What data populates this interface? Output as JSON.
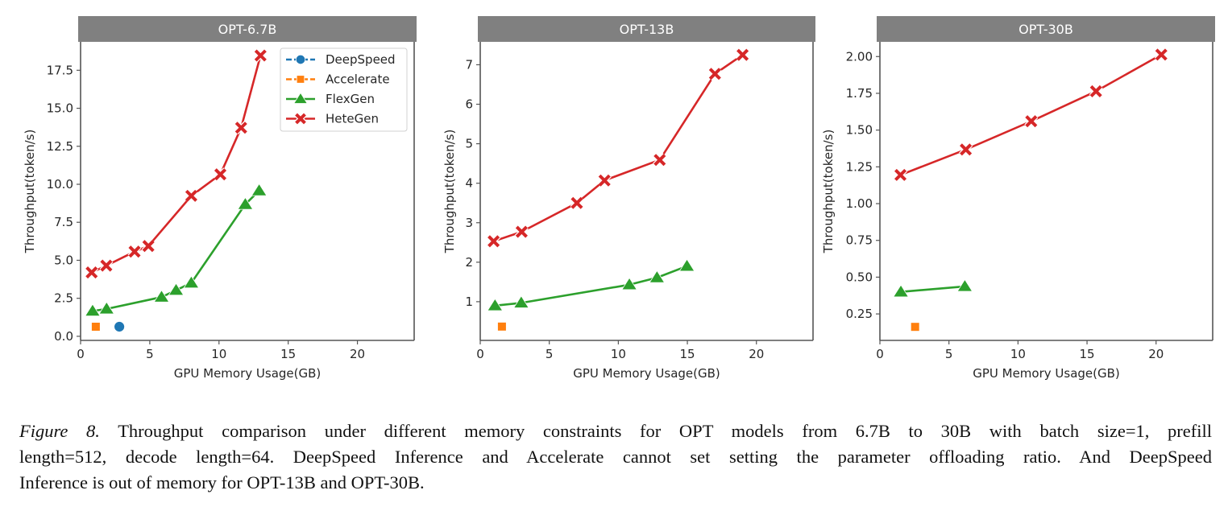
{
  "figure": {
    "label": "Figure 8.",
    "caption_lines": [
      "Throughput comparison under different memory constraints for OPT models from 6.7B to 30B with batch size=1, prefill",
      "length=512, decode length=64. DeepSpeed Inference and Accelerate cannot set setting the parameter offloading ratio. And DeepSpeed",
      "Inference is out of memory for OPT-13B and OPT-30B."
    ]
  },
  "legend": {
    "placement": "upper-right of first panel",
    "entries": [
      {
        "name": "DeepSpeed",
        "color": "#1f77b4",
        "marker": "circle"
      },
      {
        "name": "Accelerate",
        "color": "#ff7f0e",
        "marker": "square"
      },
      {
        "name": "FlexGen",
        "color": "#2ca02c",
        "marker": "triangle"
      },
      {
        "name": "HeteGen",
        "color": "#d62728",
        "marker": "x"
      }
    ]
  },
  "chart_data": [
    {
      "type": "line",
      "title": "OPT-6.7B",
      "xlabel": "GPU Memory Usage(GB)",
      "ylabel": "Throughput(token/s)",
      "xlim": [
        0,
        24.1
      ],
      "ylim": [
        -0.27,
        19.37
      ],
      "xticks": [
        0,
        5,
        10,
        15,
        20
      ],
      "xtick_labels": [
        "0",
        "5",
        "10",
        "15",
        "20"
      ],
      "yticks": [
        0,
        2.5,
        5,
        7.5,
        10,
        12.5,
        15,
        17.5
      ],
      "ytick_labels": [
        "0.0",
        "2.5",
        "5.0",
        "7.5",
        "10.0",
        "12.5",
        "15.0",
        "17.5"
      ],
      "grid": false,
      "legend": true,
      "series": [
        {
          "name": "DeepSpeed",
          "x": [
            2.8
          ],
          "y": [
            0.63
          ]
        },
        {
          "name": "Accelerate",
          "x": [
            1.1
          ],
          "y": [
            0.63
          ]
        },
        {
          "name": "FlexGen",
          "x": [
            0.87,
            1.88,
            5.85,
            6.9,
            8.0,
            11.9,
            12.9
          ],
          "y": [
            1.66,
            1.8,
            2.58,
            3.03,
            3.51,
            8.68,
            9.58
          ]
        },
        {
          "name": "HeteGen",
          "x": [
            0.8,
            1.86,
            3.9,
            4.9,
            8.0,
            10.1,
            11.6,
            13.0
          ],
          "y": [
            4.2,
            4.65,
            5.57,
            5.94,
            9.24,
            10.65,
            13.72,
            18.47
          ]
        }
      ]
    },
    {
      "type": "line",
      "title": "OPT-13B",
      "xlabel": "GPU Memory Usage(GB)",
      "ylabel": "Throughput(token/s)",
      "xlim": [
        0,
        24.1
      ],
      "ylim": [
        0.02,
        7.58
      ],
      "xticks": [
        0,
        5,
        10,
        15,
        20
      ],
      "xtick_labels": [
        "0",
        "5",
        "10",
        "15",
        "20"
      ],
      "yticks": [
        1,
        2,
        3,
        4,
        5,
        6,
        7
      ],
      "ytick_labels": [
        "1",
        "2",
        "3",
        "4",
        "5",
        "6",
        "7"
      ],
      "grid": false,
      "legend": false,
      "series": [
        {
          "name": "Accelerate",
          "x": [
            1.57
          ],
          "y": [
            0.37
          ]
        },
        {
          "name": "FlexGen",
          "x": [
            1.07,
            2.97,
            10.8,
            12.8,
            14.97
          ],
          "y": [
            0.9,
            0.97,
            1.43,
            1.61,
            1.9
          ]
        },
        {
          "name": "HeteGen",
          "x": [
            0.97,
            3.0,
            7.0,
            9.0,
            13.0,
            17.0,
            19.0
          ],
          "y": [
            2.53,
            2.77,
            3.5,
            4.07,
            4.59,
            6.77,
            7.25
          ]
        }
      ]
    },
    {
      "type": "line",
      "title": "OPT-30B",
      "xlabel": "GPU Memory Usage(GB)",
      "ylabel": "Throughput(token/s)",
      "xlim": [
        0,
        24.1
      ],
      "ylim": [
        0.07,
        2.1
      ],
      "xticks": [
        0,
        5,
        10,
        15,
        20
      ],
      "xtick_labels": [
        "0",
        "5",
        "10",
        "15",
        "20"
      ],
      "yticks": [
        0.25,
        0.5,
        0.75,
        1.0,
        1.25,
        1.5,
        1.75,
        2.0
      ],
      "ytick_labels": [
        "0.25",
        "0.50",
        "0.75",
        "1.00",
        "1.25",
        "1.50",
        "1.75",
        "2.00"
      ],
      "grid": false,
      "legend": false,
      "series": [
        {
          "name": "Accelerate",
          "x": [
            2.55
          ],
          "y": [
            0.162
          ]
        },
        {
          "name": "FlexGen",
          "x": [
            1.52,
            6.15
          ],
          "y": [
            0.4,
            0.437
          ]
        },
        {
          "name": "HeteGen",
          "x": [
            1.49,
            6.22,
            10.96,
            15.65,
            20.38
          ],
          "y": [
            1.195,
            1.368,
            1.56,
            1.764,
            2.013
          ]
        }
      ]
    }
  ]
}
